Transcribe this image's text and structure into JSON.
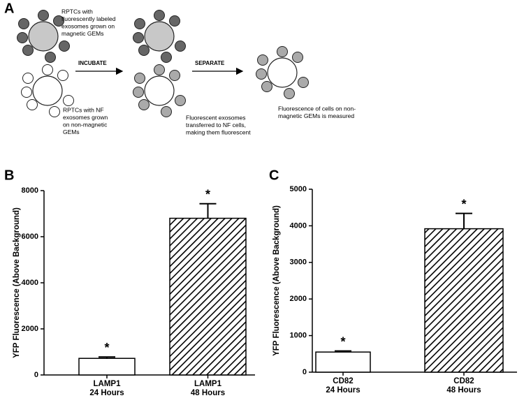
{
  "panel_labels": [
    "A",
    "B",
    "C"
  ],
  "diagram": {
    "step_labels": [
      "INCUBATE",
      "SEPARATE"
    ],
    "notes": [
      [
        "RPTCs with",
        "fluorescently labeled",
        "exosomes grown on",
        "magnetic GEMs"
      ],
      [
        "RPTCs with NF",
        "exosomes grown",
        "on non-magnetic",
        "GEMs"
      ],
      [
        "Fluorescent exosomes",
        "transferred to NF cells,",
        "making them fluorescent"
      ],
      [
        "Fluorescence of cells on non-",
        "magnetic GEMs is measured"
      ]
    ]
  },
  "chart_data": [
    {
      "type": "bar",
      "y_label": "YFP Fluorescence (Above Background)",
      "categories": [
        [
          "LAMP1",
          "24 Hours"
        ],
        [
          "LAMP1",
          "48 Hours"
        ]
      ],
      "values": [
        720,
        6800
      ],
      "errors": [
        60,
        630
      ],
      "annotations": [
        "*",
        "*"
      ],
      "fills": [
        "plain",
        "hatch"
      ],
      "ylim": [
        0,
        8000
      ],
      "yticks": [
        0,
        2000,
        4000,
        6000,
        8000
      ]
    },
    {
      "type": "bar",
      "y_label": "YFP Fluorescence (Above Background)",
      "categories": [
        [
          "CD82",
          "24 Hours"
        ],
        [
          "CD82",
          "48 Hours"
        ]
      ],
      "values": [
        550,
        3920
      ],
      "errors": [
        30,
        420
      ],
      "annotations": [
        "*",
        "*"
      ],
      "fills": [
        "plain",
        "hatch"
      ],
      "ylim": [
        0,
        5000
      ],
      "yticks": [
        0,
        1000,
        2000,
        3000,
        4000,
        5000
      ]
    }
  ]
}
